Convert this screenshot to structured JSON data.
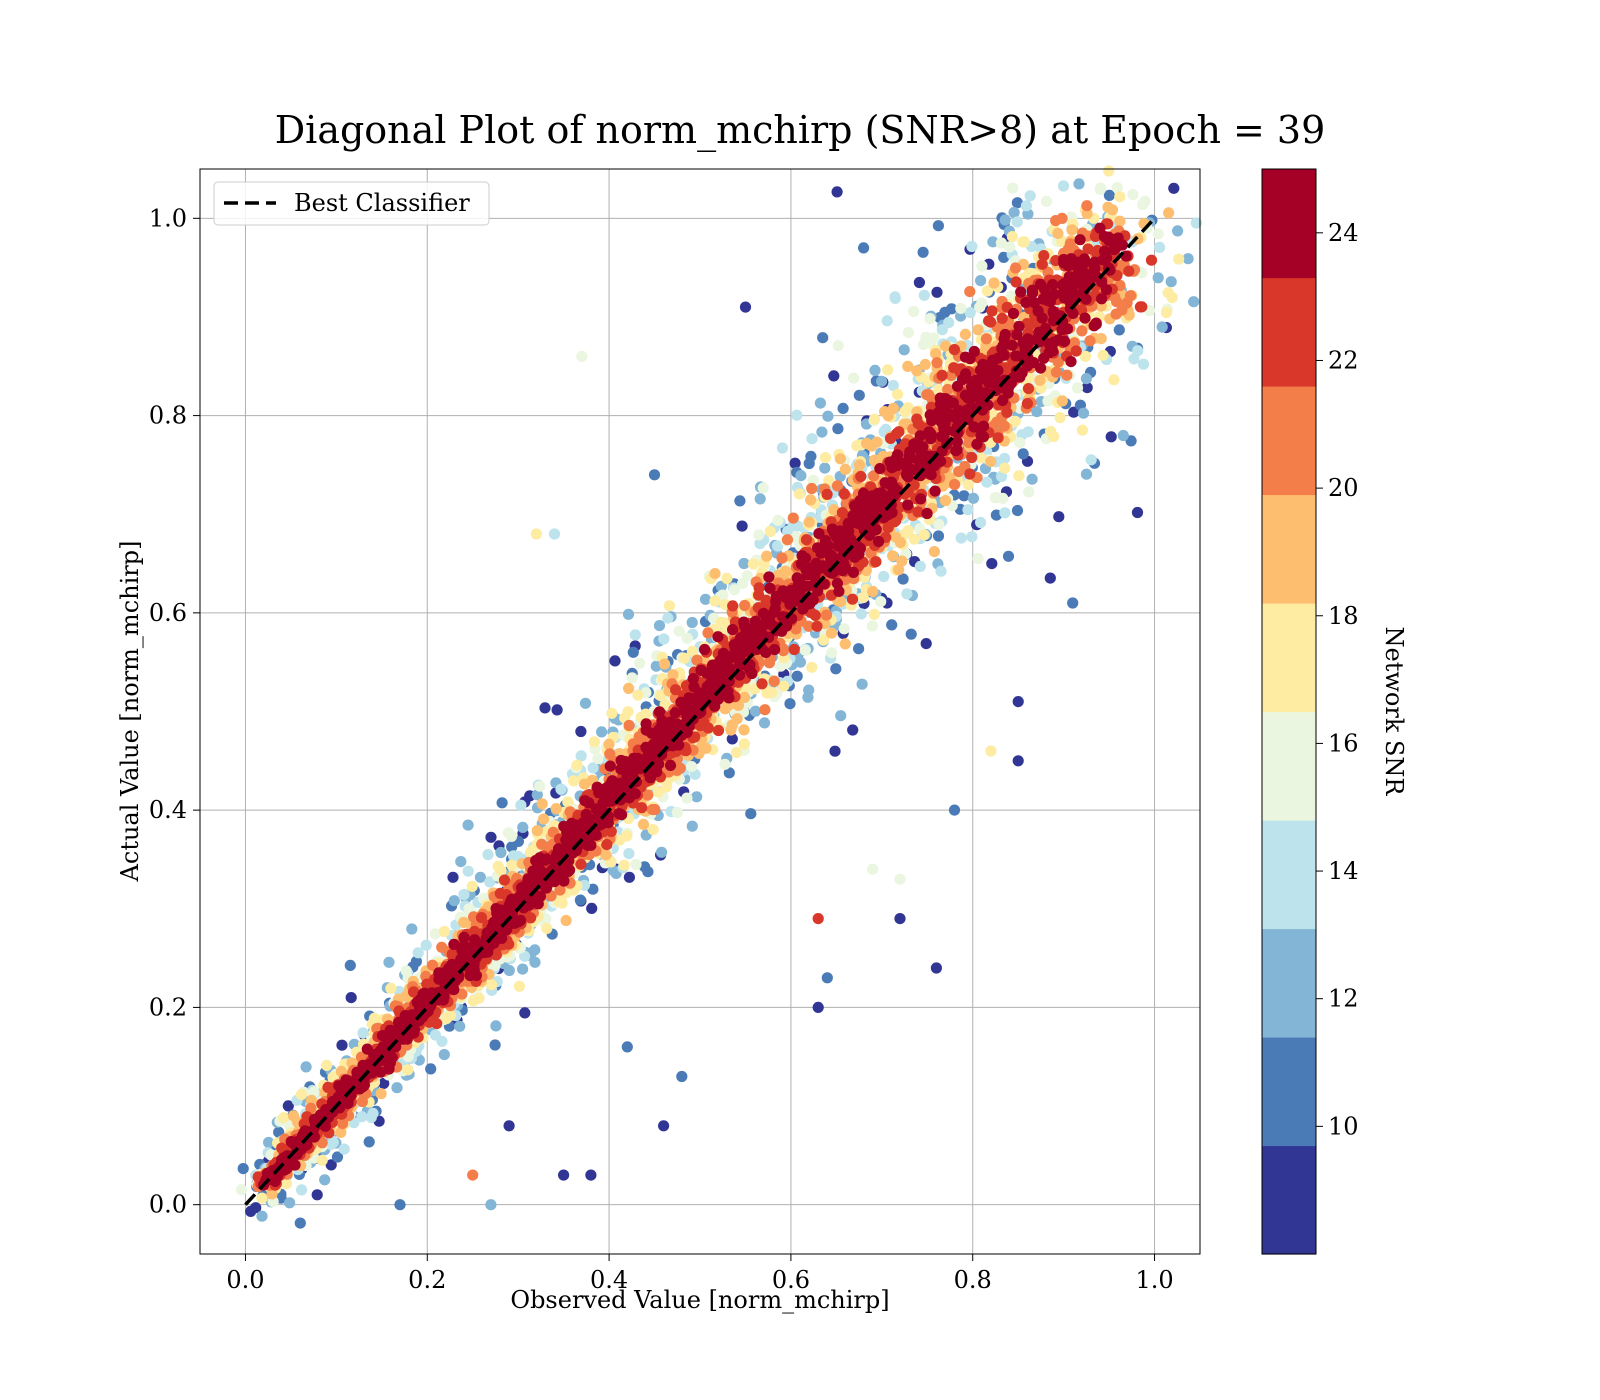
{
  "chart_data": {
    "type": "scatter",
    "title": "Diagonal Plot of norm_mchirp (SNR>8) at Epoch = 39",
    "xlabel": "Observed Value [norm_mchirp]",
    "ylabel": "Actual Value [norm_mchirp]",
    "xlim": [
      -0.05,
      1.05
    ],
    "ylim": [
      -0.05,
      1.05
    ],
    "xticks": [
      "0.0",
      "0.2",
      "0.4",
      "0.6",
      "0.8",
      "1.0"
    ],
    "yticks": [
      "0.0",
      "0.2",
      "0.4",
      "0.6",
      "0.8",
      "1.0"
    ],
    "grid": true,
    "legend": {
      "placement": "upper-left",
      "entries": [
        "Best Classifier"
      ]
    },
    "reference_line": {
      "name": "Best Classifier",
      "style": "dashed",
      "color": "#000000",
      "x": [
        0,
        1
      ],
      "y": [
        0,
        1
      ]
    },
    "colorbar": {
      "label": "Network SNR",
      "range": [
        8,
        25
      ],
      "ticks": [
        "10",
        "12",
        "14",
        "16",
        "18",
        "20",
        "22",
        "24"
      ],
      "bands": [
        {
          "from": 8,
          "to": 9.7,
          "color": "#313695"
        },
        {
          "from": 9.7,
          "to": 11.4,
          "color": "#4a7bb7"
        },
        {
          "from": 11.4,
          "to": 13.1,
          "color": "#82b5d6"
        },
        {
          "from": 13.1,
          "to": 14.8,
          "color": "#bde3ed"
        },
        {
          "from": 14.8,
          "to": 16.5,
          "color": "#eaf6e0"
        },
        {
          "from": 16.5,
          "to": 18.2,
          "color": "#fdeca2"
        },
        {
          "from": 18.2,
          "to": 19.9,
          "color": "#fdbe6f"
        },
        {
          "from": 19.9,
          "to": 21.6,
          "color": "#f47e4a"
        },
        {
          "from": 21.6,
          "to": 23.3,
          "color": "#d9372a"
        },
        {
          "from": 23.3,
          "to": 25,
          "color": "#a50026"
        }
      ]
    },
    "series": [
      {
        "description": "Observed vs actual norm_mchirp, colored by network SNR; points cluster tightly along the diagonal, high SNR (dark red) closest to it and low SNR (blue) spread wider",
        "points": [
          {
            "x": 0.17,
            "y": 0.0,
            "snr": 10
          },
          {
            "x": 0.25,
            "y": 0.03,
            "snr": 21
          },
          {
            "x": 0.27,
            "y": 0.0,
            "snr": 12
          },
          {
            "x": 0.35,
            "y": 0.03,
            "snr": 9
          },
          {
            "x": 0.38,
            "y": 0.03,
            "snr": 9
          },
          {
            "x": 0.46,
            "y": 0.08,
            "snr": 9
          },
          {
            "x": 0.48,
            "y": 0.13,
            "snr": 10
          },
          {
            "x": 0.42,
            "y": 0.16,
            "snr": 10
          },
          {
            "x": 0.29,
            "y": 0.08,
            "snr": 9
          },
          {
            "x": 0.37,
            "y": 0.86,
            "snr": 16
          },
          {
            "x": 0.32,
            "y": 0.68,
            "snr": 18
          },
          {
            "x": 0.34,
            "y": 0.68,
            "snr": 14
          },
          {
            "x": 0.55,
            "y": 0.91,
            "snr": 9
          },
          {
            "x": 0.68,
            "y": 0.97,
            "snr": 10
          },
          {
            "x": 0.45,
            "y": 0.74,
            "snr": 10
          },
          {
            "x": 0.63,
            "y": 0.29,
            "snr": 22
          },
          {
            "x": 0.63,
            "y": 0.2,
            "snr": 9
          },
          {
            "x": 0.64,
            "y": 0.23,
            "snr": 10
          },
          {
            "x": 0.72,
            "y": 0.29,
            "snr": 9
          },
          {
            "x": 0.76,
            "y": 0.24,
            "snr": 9
          },
          {
            "x": 0.85,
            "y": 0.45,
            "snr": 9
          },
          {
            "x": 0.91,
            "y": 0.61,
            "snr": 10
          },
          {
            "x": 0.82,
            "y": 0.46,
            "snr": 18
          },
          {
            "x": 0.78,
            "y": 0.4,
            "snr": 10
          },
          {
            "x": 0.72,
            "y": 0.33,
            "snr": 16
          },
          {
            "x": 0.69,
            "y": 0.34,
            "snr": 16
          },
          {
            "x": 0.85,
            "y": 0.51,
            "snr": 9
          },
          {
            "x": 0.94,
            "y": 0.99,
            "snr": 24
          },
          {
            "x": 0.96,
            "y": 0.98,
            "snr": 24
          },
          {
            "x": 0.02,
            "y": 0.02,
            "snr": 24
          }
        ]
      }
    ]
  }
}
